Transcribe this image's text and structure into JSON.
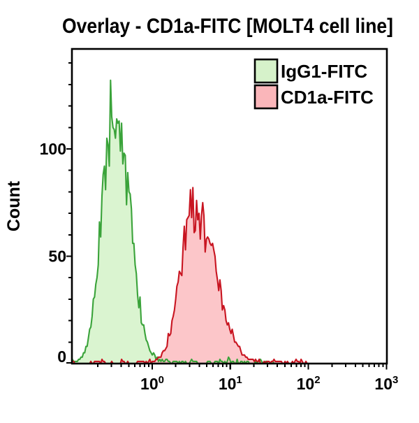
{
  "title": "Overlay - CD1a-FITC [MOLT4 cell line]",
  "colors": {
    "background": "#ffffff",
    "axis": "#000000",
    "title_text": "#000000",
    "green_line": "#3aa33a",
    "green_fill": "#daf4d0",
    "red_line": "#c81521",
    "red_fill": "#fbbcc0"
  },
  "legend": {
    "position": "top-right-inside",
    "items": [
      {
        "label": "IgG1-FITC",
        "swatch_fill": "#d6f2ca",
        "swatch_border": "#000000"
      },
      {
        "label": "CD1a-FITC",
        "swatch_fill": "#fab6ba",
        "swatch_border": "#000000"
      }
    ]
  },
  "chart_data": {
    "type": "area",
    "subtype": "flow-cytometry-histogram-overlay",
    "title": "Overlay - CD1a-FITC [MOLT4 cell line]",
    "xlabel": "",
    "ylabel": "Count",
    "x_scale": "log10",
    "x_range_log10": [
      -1.03,
      3.0
    ],
    "x_ticks": [
      {
        "base": "10",
        "exp": "0",
        "value": 1
      },
      {
        "base": "10",
        "exp": "1",
        "value": 10
      },
      {
        "base": "10",
        "exp": "2",
        "value": 100
      },
      {
        "base": "10",
        "exp": "3",
        "value": 1000
      }
    ],
    "x_minor_ticks": "2-9 within each decade (0.2-0.9, 2-9, 20-90, 200-900)",
    "y_ticks": [
      {
        "value": 0,
        "label": "0"
      },
      {
        "value": 50,
        "label": "50"
      },
      {
        "value": 100,
        "label": "100"
      }
    ],
    "y_minor_step": 10,
    "ylim": [
      0,
      146
    ],
    "grid": false,
    "legend_position": "top-right",
    "series": [
      {
        "name": "IgG1-FITC",
        "role": "isotype-control",
        "peak_x": 0.32,
        "peak_count": 139,
        "log_mean": -0.49,
        "log_sigma_left": 0.15,
        "log_sigma_right": 0.19,
        "envelope_peak": 122,
        "max_count": 139,
        "noise_floor": 0.8,
        "noise_span": 0.36,
        "baseline_noise": 2.6,
        "baseline_range_log10": [
          -1.03,
          1.55
        ],
        "line_color": "#3aa33a",
        "fill_color": "#daf4d0",
        "fill_opacity": 1.0,
        "seed": 42
      },
      {
        "name": "CD1a-FITC",
        "role": "stained-sample",
        "peak_x": 3.4,
        "peak_count": 92,
        "log_mean": 0.537,
        "log_sigma_left": 0.17,
        "log_sigma_right": 0.26,
        "envelope_peak": 74,
        "max_count": 93,
        "noise_floor": 0.8,
        "noise_span": 0.36,
        "baseline_noise": 2.2,
        "baseline_range_log10": [
          -1.03,
          2.0
        ],
        "line_color": "#c81521",
        "fill_color": "#fbbcc0",
        "fill_opacity": 0.85,
        "seed": 1337
      }
    ]
  }
}
